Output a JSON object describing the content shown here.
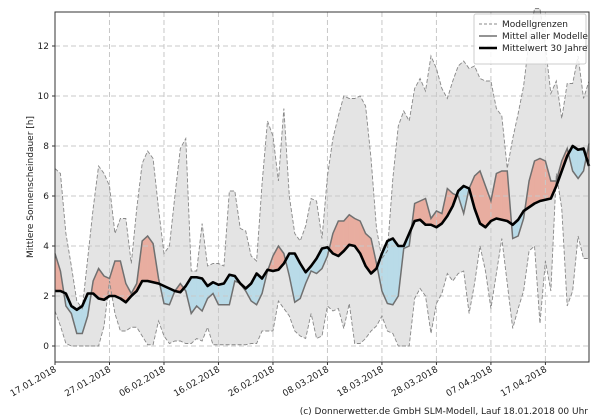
{
  "chart_data": {
    "type": "area",
    "title": "",
    "xlabel": "",
    "ylabel": "Mittlere Sonnenscheindauer [h]",
    "ylim": [
      -0.64,
      13.36
    ],
    "yticks": [
      0,
      2,
      4,
      6,
      8,
      10,
      12
    ],
    "xticks": [
      "17.01.2018",
      "27.01.2018",
      "06.02.2018",
      "16.02.2018",
      "26.02.2018",
      "08.03.2018",
      "18.03.2018",
      "28.03.2018",
      "07.04.2018",
      "17.04.2018"
    ],
    "grid": true,
    "legend_position": "top-right",
    "colors": {
      "above": "#e8ada0",
      "below": "#b9dbe8",
      "range": "#e4e4e4",
      "range_line": "#888888",
      "model_mean": "#707070",
      "climate_mean": "#000000"
    },
    "x": [
      "17.01.2018",
      "18.01.2018",
      "19.01.2018",
      "20.01.2018",
      "21.01.2018",
      "22.01.2018",
      "23.01.2018",
      "24.01.2018",
      "25.01.2018",
      "26.01.2018",
      "27.01.2018",
      "28.01.2018",
      "29.01.2018",
      "30.01.2018",
      "31.01.2018",
      "01.02.2018",
      "02.02.2018",
      "03.02.2018",
      "04.02.2018",
      "05.02.2018",
      "06.02.2018",
      "07.02.2018",
      "08.02.2018",
      "09.02.2018",
      "10.02.2018",
      "11.02.2018",
      "12.02.2018",
      "13.02.2018",
      "14.02.2018",
      "15.02.2018",
      "16.02.2018",
      "17.02.2018",
      "18.02.2018",
      "19.02.2018",
      "20.02.2018",
      "21.02.2018",
      "22.02.2018",
      "23.02.2018",
      "24.02.2018",
      "25.02.2018",
      "26.02.2018",
      "27.02.2018",
      "28.02.2018",
      "01.03.2018",
      "02.03.2018",
      "03.03.2018",
      "04.03.2018",
      "05.03.2018",
      "06.03.2018",
      "07.03.2018",
      "08.03.2018",
      "09.03.2018",
      "10.03.2018",
      "11.03.2018",
      "12.03.2018",
      "13.03.2018",
      "14.03.2018",
      "15.03.2018",
      "16.03.2018",
      "17.03.2018",
      "18.03.2018",
      "19.03.2018",
      "20.03.2018",
      "21.03.2018",
      "22.03.2018",
      "23.03.2018",
      "24.03.2018",
      "25.03.2018",
      "26.03.2018",
      "27.03.2018",
      "28.03.2018",
      "29.03.2018",
      "30.03.2018",
      "31.03.2018",
      "01.04.2018",
      "02.04.2018",
      "03.04.2018",
      "04.04.2018",
      "05.04.2018",
      "06.04.2018",
      "07.04.2018",
      "08.04.2018",
      "09.04.2018",
      "10.04.2018",
      "11.04.2018",
      "12.04.2018",
      "13.04.2018",
      "14.04.2018",
      "15.04.2018",
      "16.04.2018",
      "17.04.2018",
      "18.04.2018",
      "19.04.2018",
      "20.04.2018",
      "21.04.2018",
      "22.04.2018",
      "23.04.2018",
      "24.04.2018",
      "25.04.2018"
    ],
    "series": [
      {
        "name": "Modellgrenzen",
        "role": "upper",
        "values": [
          7.1,
          6.9,
          4.5,
          3.2,
          1.8,
          1.5,
          3.5,
          5.5,
          7.2,
          6.9,
          6.4,
          4.5,
          5.1,
          5.1,
          3.3,
          5.5,
          7.3,
          7.8,
          7.5,
          5.5,
          3.7,
          4.0,
          6.0,
          7.9,
          8.3,
          3.0,
          3.0,
          4.9,
          3.2,
          3.3,
          3.3,
          3.2,
          6.2,
          6.2,
          4.7,
          4.6,
          3.6,
          3.4,
          6.5,
          9.0,
          8.4,
          6.6,
          9.5,
          6.0,
          4.5,
          4.2,
          4.8,
          5.9,
          5.8,
          4.3,
          6.8,
          8.3,
          9.2,
          10.0,
          9.9,
          9.9,
          10.0,
          9.6,
          7.5,
          4.7,
          3.5,
          3.8,
          6.7,
          8.8,
          9.4,
          9.0,
          10.3,
          10.7,
          10.2,
          11.6,
          11.1,
          10.3,
          9.9,
          10.6,
          11.2,
          11.4,
          11.1,
          11.2,
          10.7,
          10.6,
          10.6,
          9.5,
          9.2,
          7.1,
          8.3,
          9.3,
          10.4,
          12.2,
          13.5,
          13.5,
          12.0,
          10.1,
          10.6,
          9.1,
          10.5,
          10.5,
          11.6,
          9.9,
          10.6
        ]
      },
      {
        "name": "Modellgrenzen",
        "role": "lower",
        "values": [
          1.4,
          0.8,
          0.1,
          0,
          0,
          0,
          0,
          0,
          0,
          0.8,
          2.6,
          1.3,
          0.6,
          0.6,
          0.75,
          0.75,
          0.4,
          0.05,
          0.05,
          1.0,
          0.4,
          0.1,
          0.2,
          0.2,
          0.1,
          0.1,
          0.3,
          0.2,
          0.75,
          0.05,
          0.05,
          0.05,
          0.05,
          0.05,
          0.05,
          0.05,
          0.1,
          0.1,
          0.6,
          0.6,
          0.6,
          1.8,
          1.5,
          1.2,
          0.6,
          0.4,
          0.3,
          1.3,
          0.3,
          0.4,
          1.6,
          1.4,
          1.5,
          0.7,
          1.7,
          0.1,
          0.1,
          0.3,
          0.6,
          0.8,
          1.2,
          0.6,
          0.5,
          0,
          0,
          0,
          1.9,
          2.3,
          2.0,
          0.5,
          1.7,
          2.1,
          2.9,
          2.6,
          2.9,
          3.0,
          1.3,
          2.5,
          4.0,
          3.0,
          1.5,
          2.9,
          4.3,
          2.5,
          0.7,
          1.5,
          2.2,
          3.8,
          4.0,
          0.9,
          3.4,
          2.2,
          6.9,
          5.5,
          1.6,
          2.2,
          4.4,
          3.5,
          3.5
        ]
      },
      {
        "name": "Mittel aller Modelle",
        "role": "model_mean",
        "values": [
          3.7,
          3.0,
          1.6,
          1.3,
          0.5,
          0.5,
          1.2,
          2.6,
          3.1,
          2.8,
          2.7,
          3.4,
          3.4,
          2.5,
          2.1,
          2.5,
          4.2,
          4.4,
          4.1,
          2.7,
          1.7,
          1.65,
          2.2,
          2.5,
          2.2,
          1.3,
          1.6,
          1.4,
          1.9,
          2.1,
          1.65,
          1.65,
          1.65,
          2.6,
          2.5,
          2.2,
          1.8,
          1.65,
          2.1,
          3.0,
          3.6,
          4.0,
          3.7,
          2.8,
          1.75,
          1.9,
          2.5,
          3.0,
          2.9,
          3.1,
          3.6,
          4.5,
          5.0,
          5.0,
          5.25,
          5.1,
          5.0,
          4.5,
          4.3,
          3.3,
          2.2,
          1.7,
          1.65,
          2.0,
          3.9,
          4.0,
          5.7,
          5.8,
          5.9,
          5.1,
          5.4,
          5.3,
          6.3,
          6.1,
          6.0,
          5.3,
          6.3,
          6.8,
          7.0,
          6.4,
          5.8,
          6.9,
          7.0,
          7.0,
          4.3,
          4.4,
          5.1,
          6.6,
          7.4,
          7.5,
          7.4,
          6.6,
          6.6,
          7.4,
          7.9,
          7.0,
          6.7,
          7.0,
          8.1
        ]
      },
      {
        "name": "Mittelwert 30 Jahre",
        "role": "climate_mean",
        "values": [
          2.2,
          2.2,
          2.1,
          1.6,
          1.45,
          1.6,
          2.1,
          2.1,
          1.9,
          1.85,
          2.0,
          2.0,
          1.9,
          1.75,
          2.0,
          2.2,
          2.6,
          2.6,
          2.55,
          2.5,
          2.4,
          2.3,
          2.2,
          2.15,
          2.4,
          2.75,
          2.75,
          2.7,
          2.4,
          2.55,
          2.45,
          2.5,
          2.85,
          2.8,
          2.5,
          2.3,
          2.5,
          2.9,
          2.7,
          3.05,
          3.0,
          3.05,
          3.3,
          3.7,
          3.7,
          3.3,
          2.95,
          3.2,
          3.5,
          3.9,
          3.95,
          3.7,
          3.6,
          3.8,
          4.05,
          4.0,
          3.7,
          3.2,
          2.9,
          3.1,
          3.7,
          4.2,
          4.3,
          4.0,
          4.0,
          4.5,
          5.0,
          5.05,
          4.85,
          4.85,
          4.75,
          4.9,
          5.2,
          5.6,
          6.2,
          6.4,
          6.3,
          5.5,
          4.9,
          4.75,
          5.0,
          5.1,
          5.05,
          5.0,
          4.85,
          5.05,
          5.4,
          5.55,
          5.7,
          5.8,
          5.85,
          5.9,
          6.4,
          7.0,
          7.6,
          8.0,
          7.85,
          7.9,
          7.2
        ]
      }
    ],
    "legend": [
      "Modellgrenzen",
      "Mittel aller Modelle",
      "Mittelwert 30 Jahre"
    ]
  },
  "footer": "(c) Donnerwetter.de GmbH SLM-Modell, Lauf 18.01.2018 00 Uhr"
}
